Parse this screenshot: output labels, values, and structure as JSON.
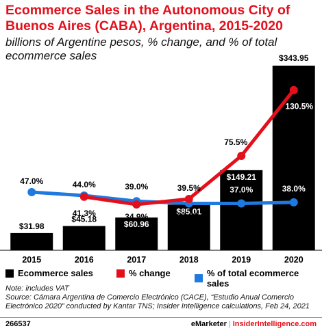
{
  "title": "Ecommerce Sales in the Autonomous City of Buenos Aires (CABA), Argentina, 2015-2020",
  "subtitle": "billions of Argentine pesos, % change, and % of total ecommerce sales",
  "colors": {
    "bar": "#000000",
    "change": "#e3101c",
    "share": "#1f7ae0",
    "accent": "#e3101c"
  },
  "chart_data": {
    "type": "bar",
    "categories": [
      "2015",
      "2016",
      "2017",
      "2018",
      "2019",
      "2020"
    ],
    "series": [
      {
        "name": "Ecommerce sales",
        "type": "bar",
        "values": [
          31.98,
          45.18,
          60.96,
          85.01,
          149.21,
          343.95
        ],
        "labels": [
          "$31.98",
          "$45.18",
          "$60.96",
          "$85.01",
          "$149.21",
          "$343.95"
        ]
      },
      {
        "name": "% change",
        "type": "line",
        "values": [
          null,
          41.3,
          34.9,
          39.5,
          75.5,
          130.5
        ],
        "labels": [
          "",
          "41.3%",
          "34.9%",
          "39.5%",
          "75.5%",
          "130.5%"
        ]
      },
      {
        "name": "% of total ecommerce sales",
        "type": "line",
        "values": [
          47.0,
          44.0,
          39.0,
          37.0,
          37.0,
          38.0
        ],
        "labels": [
          "47.0%",
          "44.0%",
          "39.0%",
          "37.0%",
          "37.0%",
          "38.0%"
        ]
      }
    ],
    "legend_position": "bottom",
    "grid": false
  },
  "legend": {
    "items": [
      "Ecommerce sales",
      "% change",
      "% of total ecommerce sales"
    ]
  },
  "notes": {
    "line1": "Note: includes VAT",
    "line2": "Source: Cámara Argentina de Comercio Electrónico (CACE), “Estudio Anual Comercio Electrónico 2020” conducted by Kantar TNS; Insider Intelligence calculations, Feb 24, 2021"
  },
  "footer": {
    "chart_id": "266537",
    "brand1": "eMarketer",
    "separator": "|",
    "brand2": "InsiderIntelligence.com"
  }
}
